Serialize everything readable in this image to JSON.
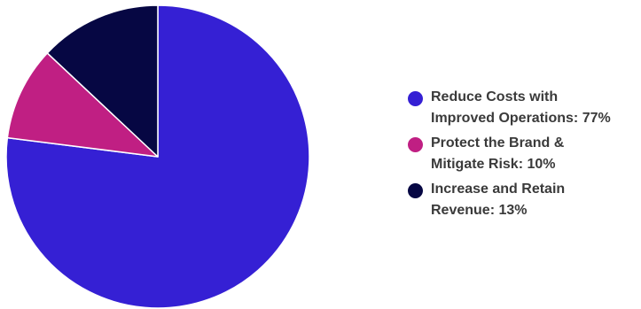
{
  "colors": {
    "reduce_costs": "#3520d4",
    "protect_brand": "#c01f83",
    "increase_revenue": "#060743",
    "background": "#ffffff",
    "slice_border": "#ffffff"
  },
  "chart_data": {
    "type": "pie",
    "title": "",
    "slices": [
      {
        "label": "Reduce Costs with Improved Operations",
        "value": 77,
        "color": "#3520d4"
      },
      {
        "label": "Protect the Brand & Mitigate Risk",
        "value": 10,
        "color": "#c01f83"
      },
      {
        "label": "Increase and Retain Revenue",
        "value": 13,
        "color": "#060743"
      }
    ],
    "start_angle": "12 o'clock",
    "direction": "clockwise",
    "legend_position": "right"
  },
  "legend": {
    "items": [
      {
        "text": "Reduce Costs with\nImproved Operations: 77%",
        "color": "#3520d4"
      },
      {
        "text": "Protect the Brand &\nMitigate Risk: 10%",
        "color": "#c01f83"
      },
      {
        "text": "Increase and Retain\nRevenue: 13%",
        "color": "#060743"
      }
    ]
  }
}
